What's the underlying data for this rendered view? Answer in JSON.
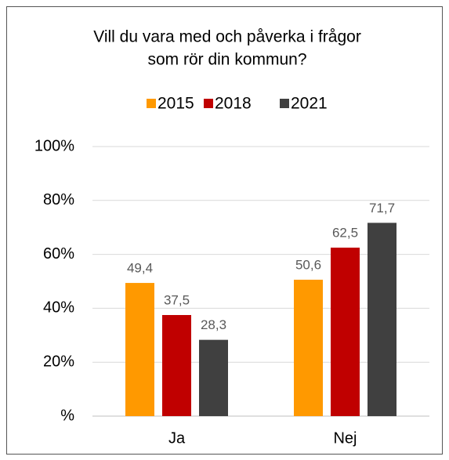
{
  "chart_data": {
    "type": "bar",
    "title": [
      "Vill du vara med och påverka i frågor",
      "som rör din kommun?"
    ],
    "categories": [
      "Ja",
      "Nej"
    ],
    "series": [
      {
        "name": "2015",
        "color": "#ff9900",
        "values": [
          49.4,
          50.6
        ],
        "value_labels": [
          "49,4",
          "50,6"
        ]
      },
      {
        "name": "2018",
        "color": "#c00000",
        "values": [
          37.5,
          62.5
        ],
        "value_labels": [
          "37,5",
          "62,5"
        ]
      },
      {
        "name": "2021",
        "color": "#404040",
        "values": [
          28.3,
          71.7
        ],
        "value_labels": [
          "28,3",
          "71,7"
        ]
      }
    ],
    "ylim": [
      0,
      100
    ],
    "yticks": [
      {
        "value": 0,
        "label": "%"
      },
      {
        "value": 20,
        "label": "20%"
      },
      {
        "value": 40,
        "label": "40%"
      },
      {
        "value": 60,
        "label": "60%"
      },
      {
        "value": 80,
        "label": "80%"
      },
      {
        "value": 100,
        "label": "100%"
      }
    ],
    "grid": true,
    "legend": "top"
  }
}
